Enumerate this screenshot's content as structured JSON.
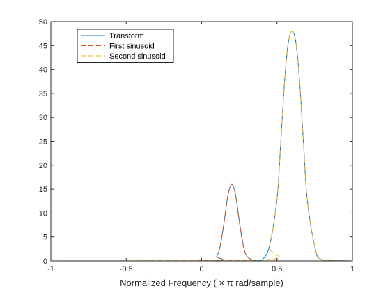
{
  "chart_data": {
    "type": "line",
    "xlabel": "Normalized  Frequency  ( × π  rad/sample)",
    "ylabel": "",
    "xlim": [
      -1,
      1
    ],
    "ylim": [
      0,
      50
    ],
    "xticks": [
      -1,
      -0.5,
      0,
      0.5,
      1
    ],
    "xtick_labels": [
      "-1",
      "-0.5",
      "0",
      "0.5",
      "1"
    ],
    "yticks": [
      0,
      5,
      10,
      15,
      20,
      25,
      30,
      35,
      40,
      45,
      50
    ],
    "ytick_labels": [
      "0",
      "5",
      "10",
      "15",
      "20",
      "25",
      "30",
      "35",
      "40",
      "45",
      "50"
    ],
    "grid": false,
    "legend_position": "top-left",
    "series": [
      {
        "name": "Transform",
        "color": "#0072BD",
        "style": "solid",
        "x": [
          -1,
          0.05,
          0.1,
          0.125,
          0.15,
          0.175,
          0.2,
          0.225,
          0.25,
          0.275,
          0.3,
          0.35,
          0.4,
          0.45,
          0.5,
          0.525,
          0.55,
          0.575,
          0.6,
          0.625,
          0.65,
          0.675,
          0.7,
          0.75,
          0.8,
          1
        ],
        "y": [
          0,
          0,
          1.0,
          3.4,
          8.3,
          13.8,
          16,
          13.8,
          8.3,
          3.4,
          1.0,
          0.1,
          0.2,
          3.1,
          12.9,
          24.9,
          37.4,
          45.7,
          48,
          45.7,
          37.4,
          24.9,
          12.9,
          3.1,
          0.2,
          0
        ]
      },
      {
        "name": "First sinusoid",
        "color": "#D95319",
        "style": "dashed",
        "x": [
          -1,
          0.05,
          0.1,
          0.125,
          0.15,
          0.175,
          0.2,
          0.225,
          0.25,
          0.275,
          0.3,
          0.35,
          0.4,
          1
        ],
        "y": [
          0,
          0,
          1.0,
          3.4,
          8.3,
          13.8,
          16,
          13.8,
          8.3,
          3.4,
          1.0,
          0.1,
          0,
          0
        ]
      },
      {
        "name": "Second sinusoid",
        "color": "#EDB120",
        "style": "dashed",
        "x": [
          -1,
          0.4,
          0.45,
          0.5,
          0.525,
          0.55,
          0.575,
          0.6,
          0.625,
          0.65,
          0.675,
          0.7,
          0.75,
          0.8,
          1
        ],
        "y": [
          0,
          0.2,
          3.1,
          12.9,
          24.9,
          37.4,
          45.7,
          48,
          45.7,
          37.4,
          24.9,
          12.9,
          3.1,
          0.2,
          0
        ]
      }
    ]
  }
}
